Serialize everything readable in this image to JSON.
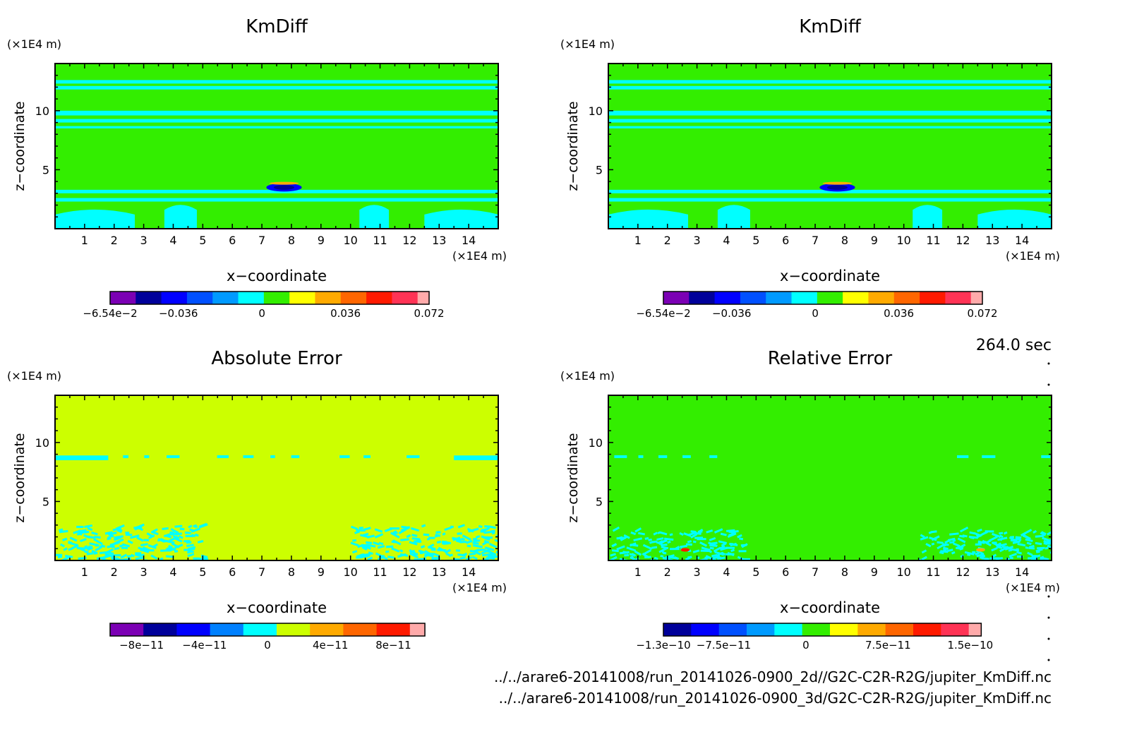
{
  "time_label": "264.0 sec",
  "file_paths": [
    "../../arare6-20141008/run_20141026-0900_2d//G2C-C2R-R2G/jupiter_KmDiff.nc",
    "../../arare6-20141008/run_20141026-0900_3d/G2C-C2R-R2G/jupiter_KmDiff.nc"
  ],
  "chart_data": [
    {
      "type": "heatmap",
      "title": "KmDiff",
      "xlabel": "x−coordinate",
      "ylabel": "z−coordinate",
      "x_unit": "(×1E4 m)",
      "y_unit": "(×1E4 m)",
      "xlim": [
        0,
        15
      ],
      "ylim": [
        0,
        14
      ],
      "xticks": [
        1,
        2,
        3,
        4,
        5,
        6,
        7,
        8,
        9,
        10,
        11,
        12,
        13,
        14
      ],
      "yticks": [
        5,
        10
      ],
      "background_color": "#33ee00",
      "colorbar": {
        "colors": [
          "#7b00b4",
          "#00009a",
          "#0000ff",
          "#0050ff",
          "#009aff",
          "#00ffff",
          "#33ee00",
          "#ffff00",
          "#ffaa00",
          "#ff6600",
          "#ff1a00",
          "#ff3355",
          "#ffaaaa"
        ],
        "tick_labels": [
          "−6.54e−2",
          "−0.036",
          "0",
          "0.036",
          "0.072"
        ],
        "tick_values": [
          -0.0654,
          -0.036,
          0,
          0.036,
          0.072
        ],
        "range": [
          -0.0654,
          0.072
        ]
      },
      "features": [
        {
          "kind": "band",
          "y": [
            12.3,
            12.6
          ],
          "color": "#00ffff"
        },
        {
          "kind": "band",
          "y": [
            11.8,
            12.1
          ],
          "color": "#00ffff"
        },
        {
          "kind": "band",
          "y": [
            9.6,
            10.0
          ],
          "color": "#00ffff"
        },
        {
          "kind": "band",
          "y": [
            9.0,
            9.3
          ],
          "color": "#00ffff"
        },
        {
          "kind": "band",
          "y": [
            8.5,
            8.7
          ],
          "color": "#00ffff"
        },
        {
          "kind": "band",
          "y": [
            3.0,
            3.3
          ],
          "color": "#00ffff"
        },
        {
          "kind": "band",
          "y": [
            2.3,
            2.6
          ],
          "color": "#00ffff"
        },
        {
          "kind": "region",
          "x": [
            0,
            2.7
          ],
          "y": [
            0,
            1.8
          ],
          "color": "#00ffff"
        },
        {
          "kind": "region",
          "x": [
            12.5,
            15
          ],
          "y": [
            0,
            1.8
          ],
          "color": "#00ffff"
        },
        {
          "kind": "region",
          "x": [
            3.7,
            4.8
          ],
          "y": [
            0,
            2.2
          ],
          "color": "#00ffff"
        },
        {
          "kind": "region",
          "x": [
            10.3,
            11.3
          ],
          "y": [
            0,
            2.2
          ],
          "color": "#00ffff"
        },
        {
          "kind": "blob",
          "cx": 7.75,
          "cy": 3.5,
          "rx": 0.6,
          "ry": 0.35,
          "color": "#0000ff"
        },
        {
          "kind": "blob",
          "cx": 7.75,
          "cy": 3.5,
          "rx": 0.35,
          "ry": 0.2,
          "color": "#00009a"
        },
        {
          "kind": "blob",
          "cx": 7.75,
          "cy": 3.85,
          "rx": 0.5,
          "ry": 0.12,
          "color": "#ffaa00"
        }
      ]
    },
    {
      "type": "heatmap",
      "title": "KmDiff",
      "xlabel": "x−coordinate",
      "ylabel": "z−coordinate",
      "x_unit": "(×1E4 m)",
      "y_unit": "(×1E4 m)",
      "xlim": [
        0,
        15
      ],
      "ylim": [
        0,
        14
      ],
      "xticks": [
        1,
        2,
        3,
        4,
        5,
        6,
        7,
        8,
        9,
        10,
        11,
        12,
        13,
        14
      ],
      "yticks": [
        5,
        10
      ],
      "background_color": "#33ee00",
      "colorbar": {
        "colors": [
          "#7b00b4",
          "#00009a",
          "#0000ff",
          "#0050ff",
          "#009aff",
          "#00ffff",
          "#33ee00",
          "#ffff00",
          "#ffaa00",
          "#ff6600",
          "#ff1a00",
          "#ff3355",
          "#ffaaaa"
        ],
        "tick_labels": [
          "−6.54e−2",
          "−0.036",
          "0",
          "0.036",
          "0.072"
        ],
        "tick_values": [
          -0.0654,
          -0.036,
          0,
          0.036,
          0.072
        ],
        "range": [
          -0.0654,
          0.072
        ]
      },
      "features": [
        {
          "kind": "band",
          "y": [
            12.3,
            12.6
          ],
          "color": "#00ffff"
        },
        {
          "kind": "band",
          "y": [
            11.8,
            12.1
          ],
          "color": "#00ffff"
        },
        {
          "kind": "band",
          "y": [
            9.6,
            10.0
          ],
          "color": "#00ffff"
        },
        {
          "kind": "band",
          "y": [
            9.0,
            9.3
          ],
          "color": "#00ffff"
        },
        {
          "kind": "band",
          "y": [
            8.5,
            8.7
          ],
          "color": "#00ffff"
        },
        {
          "kind": "band",
          "y": [
            3.0,
            3.3
          ],
          "color": "#00ffff"
        },
        {
          "kind": "band",
          "y": [
            2.3,
            2.6
          ],
          "color": "#00ffff"
        },
        {
          "kind": "region",
          "x": [
            0,
            2.7
          ],
          "y": [
            0,
            1.8
          ],
          "color": "#00ffff"
        },
        {
          "kind": "region",
          "x": [
            12.5,
            15
          ],
          "y": [
            0,
            1.8
          ],
          "color": "#00ffff"
        },
        {
          "kind": "region",
          "x": [
            3.7,
            4.8
          ],
          "y": [
            0,
            2.2
          ],
          "color": "#00ffff"
        },
        {
          "kind": "region",
          "x": [
            10.3,
            11.3
          ],
          "y": [
            0,
            2.2
          ],
          "color": "#00ffff"
        },
        {
          "kind": "blob",
          "cx": 7.75,
          "cy": 3.5,
          "rx": 0.6,
          "ry": 0.35,
          "color": "#0000ff"
        },
        {
          "kind": "blob",
          "cx": 7.75,
          "cy": 3.5,
          "rx": 0.35,
          "ry": 0.2,
          "color": "#00009a"
        },
        {
          "kind": "blob",
          "cx": 7.75,
          "cy": 3.85,
          "rx": 0.5,
          "ry": 0.12,
          "color": "#ffaa00"
        }
      ]
    },
    {
      "type": "heatmap",
      "title": "Absolute Error",
      "xlabel": "x−coordinate",
      "ylabel": "z−coordinate",
      "x_unit": "(×1E4 m)",
      "y_unit": "(×1E4 m)",
      "xlim": [
        0,
        15
      ],
      "ylim": [
        0,
        14
      ],
      "xticks": [
        1,
        2,
        3,
        4,
        5,
        6,
        7,
        8,
        9,
        10,
        11,
        12,
        13,
        14
      ],
      "yticks": [
        5,
        10
      ],
      "background_color": "#ccff00",
      "colorbar": {
        "colors": [
          "#7b00b4",
          "#00009a",
          "#0000ff",
          "#0080ff",
          "#00ffff",
          "#ccff00",
          "#ffaa00",
          "#ff6600",
          "#ff1a00",
          "#ffaaaa"
        ],
        "tick_labels": [
          "−8e−11",
          "−4e−11",
          "0",
          "4e−11",
          "8e−11"
        ],
        "tick_values": [
          -8e-11,
          -4e-11,
          0,
          4e-11,
          8e-11
        ],
        "range": [
          -1e-10,
          1e-10
        ]
      },
      "features": [
        {
          "kind": "band",
          "y": [
            8.5,
            8.9
          ],
          "x": [
            0,
            1.8
          ],
          "color": "#00ffff"
        },
        {
          "kind": "band",
          "y": [
            8.5,
            8.9
          ],
          "x": [
            13.5,
            15
          ],
          "color": "#00ffff"
        },
        {
          "kind": "speckle",
          "x": [
            0,
            5
          ],
          "y": [
            0,
            3
          ],
          "color": "#00ffff"
        },
        {
          "kind": "speckle",
          "x": [
            10,
            15
          ],
          "y": [
            0,
            3
          ],
          "color": "#00ffff"
        },
        {
          "kind": "dash",
          "y": 8.8,
          "x": [
            2.3,
            12.5
          ],
          "color": "#00ffff"
        }
      ]
    },
    {
      "type": "heatmap",
      "title": "Relative Error",
      "xlabel": "x−coordinate",
      "ylabel": "z−coordinate",
      "x_unit": "(×1E4 m)",
      "y_unit": "(×1E4 m)",
      "xlim": [
        0,
        15
      ],
      "ylim": [
        0,
        14
      ],
      "xticks": [
        1,
        2,
        3,
        4,
        5,
        6,
        7,
        8,
        9,
        10,
        11,
        12,
        13,
        14
      ],
      "yticks": [
        5,
        10
      ],
      "background_color": "#33ee00",
      "colorbar": {
        "colors": [
          "#00009a",
          "#0000ff",
          "#0050ff",
          "#009aff",
          "#00ffff",
          "#33ee00",
          "#ffff00",
          "#ffaa00",
          "#ff6600",
          "#ff1a00",
          "#ff3355",
          "#ffaaaa"
        ],
        "tick_labels": [
          "−1.3e−10",
          "−7.5e−11",
          "0",
          "7.5e−11",
          "1.5e−10"
        ],
        "tick_values": [
          -1.3e-10,
          -7.5e-11,
          0,
          7.5e-11,
          1.5e-10
        ],
        "range": [
          -1.3e-10,
          1.6e-10
        ]
      },
      "features": [
        {
          "kind": "speckle",
          "x": [
            0,
            4.5
          ],
          "y": [
            0,
            2.6
          ],
          "color": "#00ffff"
        },
        {
          "kind": "speckle",
          "x": [
            10.5,
            15
          ],
          "y": [
            0,
            2.6
          ],
          "color": "#00ffff"
        },
        {
          "kind": "dash",
          "y": 8.8,
          "x": [
            0.2,
            3.5
          ],
          "color": "#00ffff"
        },
        {
          "kind": "dash",
          "y": 8.8,
          "x": [
            11.8,
            15
          ],
          "color": "#00ffff"
        },
        {
          "kind": "blob",
          "cx": 2.6,
          "cy": 0.9,
          "rx": 0.15,
          "ry": 0.15,
          "color": "#ff1a00"
        },
        {
          "kind": "blob",
          "cx": 12.6,
          "cy": 0.9,
          "rx": 0.15,
          "ry": 0.15,
          "color": "#ffaa00"
        }
      ]
    }
  ]
}
